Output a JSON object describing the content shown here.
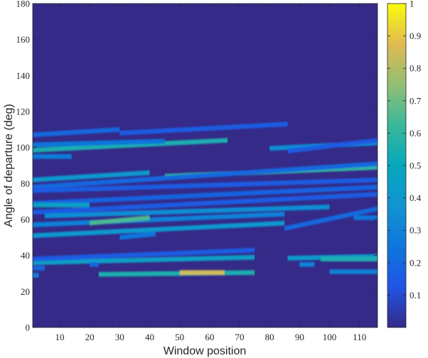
{
  "chart_data": {
    "type": "heatmap",
    "xlabel": "Window position",
    "ylabel": "Angle of departure (deg)",
    "xlim": [
      1,
      116
    ],
    "ylim": [
      0,
      180
    ],
    "x_ticks": [
      10,
      20,
      30,
      40,
      50,
      60,
      70,
      80,
      90,
      100,
      110
    ],
    "y_ticks": [
      0,
      20,
      40,
      60,
      80,
      100,
      120,
      140,
      160,
      180
    ],
    "colorbar": {
      "colormap": "parula",
      "range": [
        0,
        1
      ],
      "ticks": [
        0.1,
        0.2,
        0.3,
        0.4,
        0.5,
        0.6,
        0.7,
        0.8,
        0.9,
        1
      ],
      "tick_labels": [
        "0.1",
        "0.2",
        "0.3",
        "0.4",
        "0.5",
        "0.6",
        "0.7",
        "0.8",
        "0.9",
        "1"
      ]
    },
    "background_value": 0.0,
    "tracks": [
      {
        "x": [
          1,
          66
        ],
        "y": [
          98.5,
          104
        ],
        "value": 0.55
      },
      {
        "x": [
          1,
          45
        ],
        "y": [
          101.5,
          103.5
        ],
        "value": 0.25
      },
      {
        "x": [
          1,
          30
        ],
        "y": [
          107,
          110
        ],
        "value": 0.2
      },
      {
        "x": [
          30,
          86
        ],
        "y": [
          108,
          113
        ],
        "value": 0.15
      },
      {
        "x": [
          1,
          14
        ],
        "y": [
          95,
          95
        ],
        "value": 0.28
      },
      {
        "x": [
          80,
          116
        ],
        "y": [
          99.5,
          102.5
        ],
        "value": 0.35
      },
      {
        "x": [
          86,
          116
        ],
        "y": [
          98,
          104
        ],
        "value": 0.15
      },
      {
        "x": [
          1,
          40
        ],
        "y": [
          82,
          86
        ],
        "value": 0.4
      },
      {
        "x": [
          45,
          116
        ],
        "y": [
          84,
          89
        ],
        "value": 0.6
      },
      {
        "x": [
          1,
          116
        ],
        "y": [
          78,
          91
        ],
        "value": 0.2
      },
      {
        "x": [
          1,
          116
        ],
        "y": [
          76,
          82
        ],
        "value": 0.15
      },
      {
        "x": [
          1,
          116
        ],
        "y": [
          69,
          78
        ],
        "value": 0.18
      },
      {
        "x": [
          1,
          20
        ],
        "y": [
          68,
          68
        ],
        "value": 0.45
      },
      {
        "x": [
          1,
          116
        ],
        "y": [
          64,
          74
        ],
        "value": 0.15
      },
      {
        "x": [
          5,
          100
        ],
        "y": [
          62,
          67
        ],
        "value": 0.35
      },
      {
        "x": [
          1,
          85
        ],
        "y": [
          57,
          63
        ],
        "value": 0.3
      },
      {
        "x": [
          20,
          40
        ],
        "y": [
          58,
          61
        ],
        "value": 0.65
      },
      {
        "x": [
          1,
          85
        ],
        "y": [
          51,
          58
        ],
        "value": 0.4
      },
      {
        "x": [
          30,
          42
        ],
        "y": [
          50,
          52
        ],
        "value": 0.25
      },
      {
        "x": [
          85,
          116
        ],
        "y": [
          55,
          66
        ],
        "value": 0.2
      },
      {
        "x": [
          108,
          116
        ],
        "y": [
          61,
          61
        ],
        "value": 0.25
      },
      {
        "x": [
          1,
          75
        ],
        "y": [
          36,
          39
        ],
        "value": 0.45
      },
      {
        "x": [
          1,
          75
        ],
        "y": [
          38,
          43
        ],
        "value": 0.15
      },
      {
        "x": [
          1,
          5
        ],
        "y": [
          33,
          33
        ],
        "value": 0.2
      },
      {
        "x": [
          1,
          3
        ],
        "y": [
          29,
          29
        ],
        "value": 0.3
      },
      {
        "x": [
          20,
          23
        ],
        "y": [
          35,
          35
        ],
        "value": 0.2
      },
      {
        "x": [
          23,
          75
        ],
        "y": [
          29.5,
          30.5
        ],
        "value": 0.55
      },
      {
        "x": [
          50,
          65
        ],
        "y": [
          30.5,
          30.5
        ],
        "value": 0.85
      },
      {
        "x": [
          86,
          116
        ],
        "y": [
          38.5,
          39.5
        ],
        "value": 0.4
      },
      {
        "x": [
          97,
          116
        ],
        "y": [
          38,
          38
        ],
        "value": 0.55
      },
      {
        "x": [
          90,
          95
        ],
        "y": [
          35,
          35
        ],
        "value": 0.3
      },
      {
        "x": [
          100,
          116
        ],
        "y": [
          31,
          31
        ],
        "value": 0.3
      }
    ]
  }
}
